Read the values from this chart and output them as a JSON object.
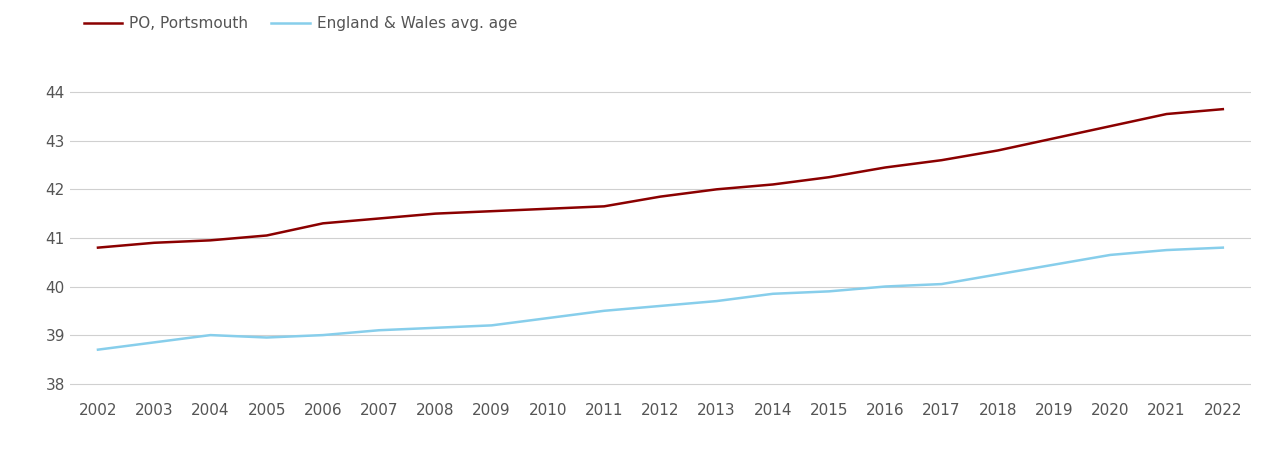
{
  "years": [
    2002,
    2003,
    2004,
    2005,
    2006,
    2007,
    2008,
    2009,
    2010,
    2011,
    2012,
    2013,
    2014,
    2015,
    2016,
    2017,
    2018,
    2019,
    2020,
    2021,
    2022
  ],
  "portsmouth": [
    40.8,
    40.9,
    40.95,
    41.05,
    41.3,
    41.4,
    41.5,
    41.55,
    41.6,
    41.65,
    41.85,
    42.0,
    42.1,
    42.25,
    42.45,
    42.6,
    42.8,
    43.05,
    43.3,
    43.55,
    43.65
  ],
  "england_wales": [
    38.7,
    38.85,
    39.0,
    38.95,
    39.0,
    39.1,
    39.15,
    39.2,
    39.35,
    39.5,
    39.6,
    39.7,
    39.85,
    39.9,
    40.0,
    40.05,
    40.25,
    40.45,
    40.65,
    40.75,
    40.8
  ],
  "portsmouth_color": "#8B0000",
  "england_wales_color": "#87CEEB",
  "grid_color": "#d0d0d0",
  "background_color": "#ffffff",
  "text_color": "#555555",
  "legend_labels": [
    "PO, Portsmouth",
    "England & Wales avg. age"
  ],
  "ylim": [
    37.7,
    44.6
  ],
  "yticks": [
    38,
    39,
    40,
    41,
    42,
    43,
    44
  ],
  "xlim_start": 2001.5,
  "xlim_end": 2022.5,
  "line_width": 1.8,
  "font_size": 11,
  "legend_font_size": 11
}
